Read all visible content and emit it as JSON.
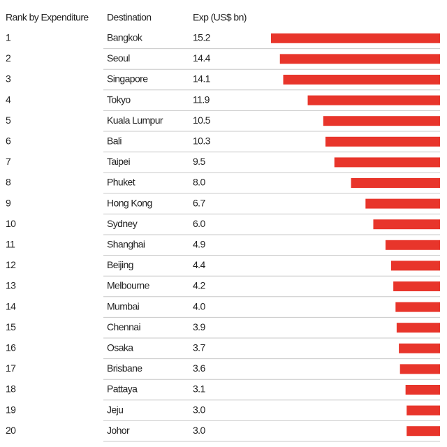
{
  "chart_data": {
    "type": "bar",
    "columns": [
      "Rank by Expenditure",
      "Destination",
      "Exp (US$ bn)"
    ],
    "ranks": [
      1,
      2,
      3,
      4,
      5,
      6,
      7,
      8,
      9,
      10,
      11,
      12,
      13,
      14,
      15,
      16,
      17,
      18,
      19,
      20
    ],
    "categories": [
      "Bangkok",
      "Seoul",
      "Singapore",
      "Tokyo",
      "Kuala Lumpur",
      "Bali",
      "Taipei",
      "Phuket",
      "Hong Kong",
      "Sydney",
      "Shanghai",
      "Beijing",
      "Melbourne",
      "Mumbai",
      "Chennai",
      "Osaka",
      "Brisbane",
      "Pattaya",
      "Jeju",
      "Johor"
    ],
    "values": [
      15.2,
      14.4,
      14.1,
      11.9,
      10.5,
      10.3,
      9.5,
      8.0,
      6.7,
      6.0,
      4.9,
      4.4,
      4.2,
      4.0,
      3.9,
      3.7,
      3.6,
      3.1,
      3.0,
      3.0
    ],
    "value_labels": [
      "15.2",
      "14.4",
      "14.1",
      "11.9",
      "10.5",
      "10.3",
      "9.5",
      "8.0",
      "6.7",
      "6.0",
      "4.9",
      "4.4",
      "4.2",
      "4.0",
      "3.9",
      "3.7",
      "3.6",
      "3.1",
      "3.0",
      "3.0"
    ],
    "color": "#e8352b"
  }
}
